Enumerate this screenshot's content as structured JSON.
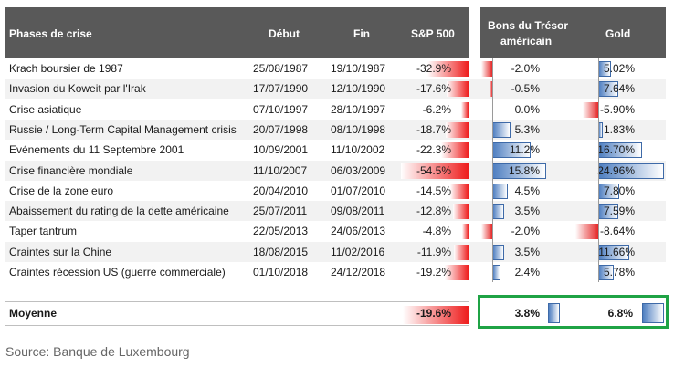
{
  "headers": {
    "phase": "Phases de crise",
    "start": "Début",
    "end": "Fin",
    "sp500": "S&P 500",
    "bonds_line1": "Bons du Trésor",
    "bonds_line2": "américain",
    "gold": "Gold"
  },
  "chart_data": {
    "type": "table",
    "columns": [
      "Phases de crise",
      "Début",
      "Fin",
      "S&P 500",
      "Bons du Trésor américain",
      "Gold"
    ],
    "rows": [
      {
        "phase": "Krach boursier de 1987",
        "start": "25/08/1987",
        "end": "19/10/1987",
        "sp": -32.9,
        "sp_label": "-32.9%",
        "bonds": -2.0,
        "bonds_label": "-2.0%",
        "gold": 5.02,
        "gold_label": "5.02%"
      },
      {
        "phase": "Invasion du Koweit par l'Irak",
        "start": "17/07/1990",
        "end": "12/10/1990",
        "sp": -17.6,
        "sp_label": "-17.6%",
        "bonds": -0.5,
        "bonds_label": "-0.5%",
        "gold": 7.64,
        "gold_label": "7.64%"
      },
      {
        "phase": "Crise asiatique",
        "start": "07/10/1997",
        "end": "28/10/1997",
        "sp": -6.2,
        "sp_label": "-6.2%",
        "bonds": 0.0,
        "bonds_label": "0.0%",
        "gold": -5.9,
        "gold_label": "-5.90%"
      },
      {
        "phase": "Russie / Long-Term Capital Management crisis",
        "start": "20/07/1998",
        "end": "08/10/1998",
        "sp": -18.7,
        "sp_label": "-18.7%",
        "bonds": 5.3,
        "bonds_label": "5.3%",
        "gold": 1.83,
        "gold_label": "1.83%"
      },
      {
        "phase": "Evénements du 11 Septembre 2001",
        "start": "10/09/2001",
        "end": "11/10/2002",
        "sp": -22.3,
        "sp_label": "-22.3%",
        "bonds": 11.2,
        "bonds_label": "11.2%",
        "gold": 16.7,
        "gold_label": "16.70%"
      },
      {
        "phase": "Crise financière mondiale",
        "start": "11/10/2007",
        "end": "06/03/2009",
        "sp": -54.5,
        "sp_label": "-54.5%",
        "bonds": 15.8,
        "bonds_label": "15.8%",
        "gold": 24.96,
        "gold_label": "24.96%"
      },
      {
        "phase": "Crise de la zone euro",
        "start": "20/04/2010",
        "end": "01/07/2010",
        "sp": -14.5,
        "sp_label": "-14.5%",
        "bonds": 4.5,
        "bonds_label": "4.5%",
        "gold": 7.8,
        "gold_label": "7.80%"
      },
      {
        "phase": "Abaissement du rating de la dette américaine",
        "start": "25/07/2011",
        "end": "09/08/2011",
        "sp": -12.8,
        "sp_label": "-12.8%",
        "bonds": 3.5,
        "bonds_label": "3.5%",
        "gold": 7.59,
        "gold_label": "7.59%"
      },
      {
        "phase": "Taper tantrum",
        "start": "22/05/2013",
        "end": "24/06/2013",
        "sp": -4.8,
        "sp_label": "-4.8%",
        "bonds": -2.0,
        "bonds_label": "-2.0%",
        "gold": -8.64,
        "gold_label": "-8.64%"
      },
      {
        "phase": "Craintes sur la Chine",
        "start": "18/08/2015",
        "end": "11/02/2016",
        "sp": -11.9,
        "sp_label": "-11.9%",
        "bonds": 3.5,
        "bonds_label": "3.5%",
        "gold": 11.66,
        "gold_label": "11.66%"
      },
      {
        "phase": "Craintes récession US (guerre commerciale)",
        "start": "01/10/2018",
        "end": "24/12/2018",
        "sp": -19.2,
        "sp_label": "-19.2%",
        "bonds": 2.4,
        "bonds_label": "2.4%",
        "gold": 5.78,
        "gold_label": "5.78%"
      }
    ],
    "average": {
      "label": "Moyenne",
      "sp": -19.6,
      "sp_label": "-19.6%",
      "bonds": 3.8,
      "bonds_label": "3.8%",
      "gold": 6.8,
      "gold_label": "6.8%"
    },
    "colors": {
      "negative": "#e52828",
      "positive": "#4f7fc1",
      "header": "#595959",
      "highlight": "#1fa345"
    }
  },
  "source": "Source: Banque de Luxembourg"
}
